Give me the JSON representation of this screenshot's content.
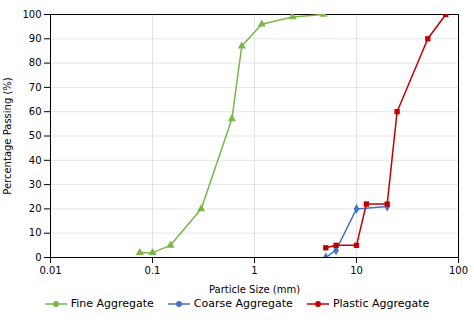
{
  "chart_data": {
    "type": "line",
    "xlabel": "Particle Size (mm)",
    "ylabel": "Percentage Passing (%)",
    "log": "x",
    "grid": true,
    "legend": "bottom",
    "xlim": [
      0.01,
      100
    ],
    "ylim": [
      0,
      100
    ],
    "xticks": [
      0.01,
      0.1,
      1,
      10,
      100
    ],
    "yticks": [
      0,
      10,
      20,
      30,
      40,
      50,
      60,
      70,
      80,
      90,
      100
    ],
    "series": [
      {
        "name": "Fine Aggregate",
        "color": "#7ab648",
        "marker": "triangle",
        "x": [
          0.075,
          0.1,
          0.15,
          0.3,
          0.6,
          0.75,
          1.18,
          2.36,
          4.75
        ],
        "values": [
          2,
          2,
          5,
          20,
          57,
          87,
          96,
          99,
          100
        ]
      },
      {
        "name": "Coarse Aggregate",
        "color": "#4472C4",
        "marker": "diamond",
        "x": [
          5.0,
          6.3,
          10.0,
          20.0
        ],
        "values": [
          0,
          3,
          20,
          21
        ]
      },
      {
        "name": "Plastic Aggregate",
        "color": "#C00000",
        "marker": "square",
        "x": [
          5.0,
          6.3,
          10.0,
          12.5,
          20.0,
          25.0,
          50.0,
          75.0
        ],
        "values": [
          4,
          5,
          5,
          22,
          22,
          60,
          90,
          100
        ]
      }
    ]
  }
}
